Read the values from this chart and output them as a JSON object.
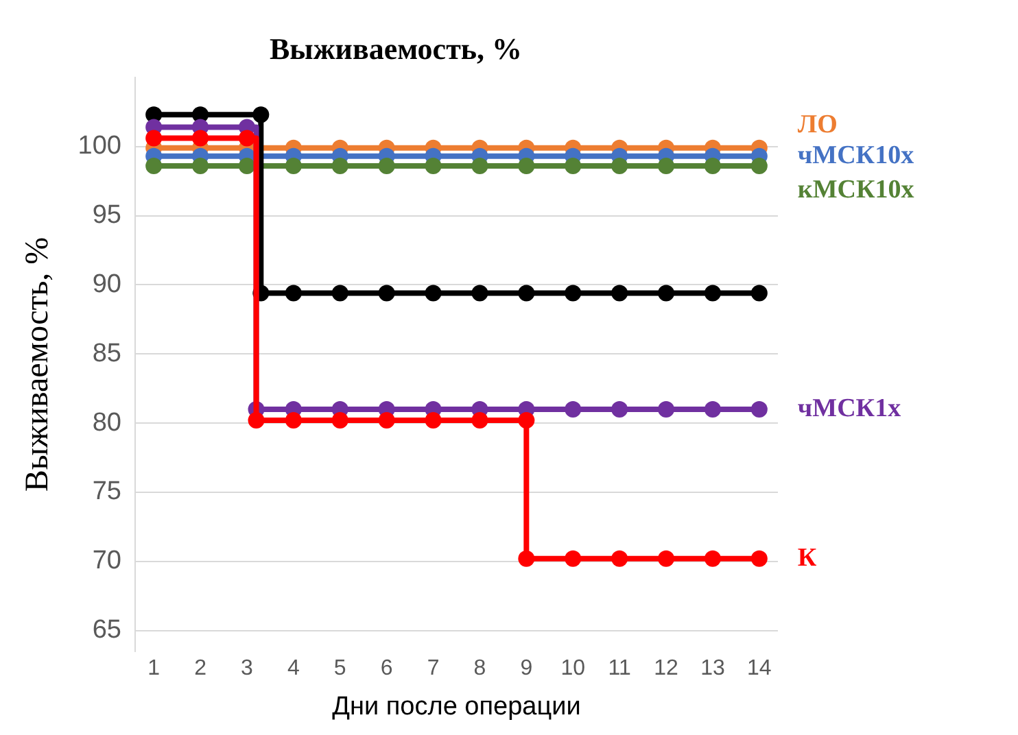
{
  "chart_data": {
    "type": "step",
    "title": "Выживаемость, %",
    "xlabel": "Дни после операции",
    "ylabel": "Выживаемость, %",
    "xlim": [
      0.6,
      14.4
    ],
    "xticks": [
      1,
      2,
      3,
      4,
      5,
      6,
      7,
      8,
      9,
      10,
      11,
      12,
      13,
      14
    ],
    "ylim": [
      63.5,
      105
    ],
    "yticks": [
      65,
      70,
      75,
      80,
      85,
      90,
      95,
      100
    ],
    "grid": "y",
    "legend": false,
    "marker": "circle",
    "line_style": "solid",
    "series": [
      {
        "name": "ЛО",
        "color": "#ed7d31",
        "x": [
          1,
          2,
          3,
          4,
          5,
          6,
          7,
          8,
          9,
          10,
          11,
          12,
          13,
          14
        ],
        "values": [
          99.9,
          99.9,
          99.9,
          99.9,
          99.9,
          99.9,
          99.9,
          99.9,
          99.9,
          99.9,
          99.9,
          99.9,
          99.9,
          99.9
        ]
      },
      {
        "name": "чМСК10х",
        "color": "#4472c4",
        "x": [
          1,
          2,
          3,
          4,
          5,
          6,
          7,
          8,
          9,
          10,
          11,
          12,
          13,
          14
        ],
        "values": [
          99.3,
          99.3,
          99.3,
          99.3,
          99.3,
          99.3,
          99.3,
          99.3,
          99.3,
          99.3,
          99.3,
          99.3,
          99.3,
          99.3
        ]
      },
      {
        "name": "кМСК10х",
        "color": "#548235",
        "x": [
          1,
          2,
          3,
          4,
          5,
          6,
          7,
          8,
          9,
          10,
          11,
          12,
          13,
          14
        ],
        "values": [
          98.6,
          98.6,
          98.6,
          98.6,
          98.6,
          98.6,
          98.6,
          98.6,
          98.6,
          98.6,
          98.6,
          98.6,
          98.6,
          98.6
        ]
      },
      {
        "color": "#000000",
        "x": [
          1,
          2,
          3.3,
          3.3,
          4,
          5,
          6,
          7,
          8,
          9,
          10,
          11,
          12,
          13,
          14
        ],
        "values": [
          102.3,
          102.3,
          102.3,
          89.4,
          89.4,
          89.4,
          89.4,
          89.4,
          89.4,
          89.4,
          89.4,
          89.4,
          89.4,
          89.4,
          89.4
        ]
      },
      {
        "name": "чМСК1х",
        "color": "#7030a0",
        "x": [
          1,
          2,
          3,
          3.2,
          4,
          5,
          6,
          7,
          8,
          9,
          10,
          11,
          12,
          13,
          14
        ],
        "values": [
          101.4,
          101.4,
          101.4,
          81,
          81,
          81,
          81,
          81,
          81,
          81,
          81,
          81,
          81,
          81,
          81
        ]
      },
      {
        "name": "К",
        "color": "#ff0000",
        "x": [
          1,
          2,
          3,
          3.2,
          4,
          5,
          6,
          7,
          8,
          9,
          9,
          10,
          11,
          12,
          13,
          14
        ],
        "values": [
          100.6,
          100.6,
          100.6,
          80.2,
          80.2,
          80.2,
          80.2,
          80.2,
          80.2,
          80.2,
          70.2,
          70.2,
          70.2,
          70.2,
          70.2,
          70.2
        ]
      }
    ]
  }
}
